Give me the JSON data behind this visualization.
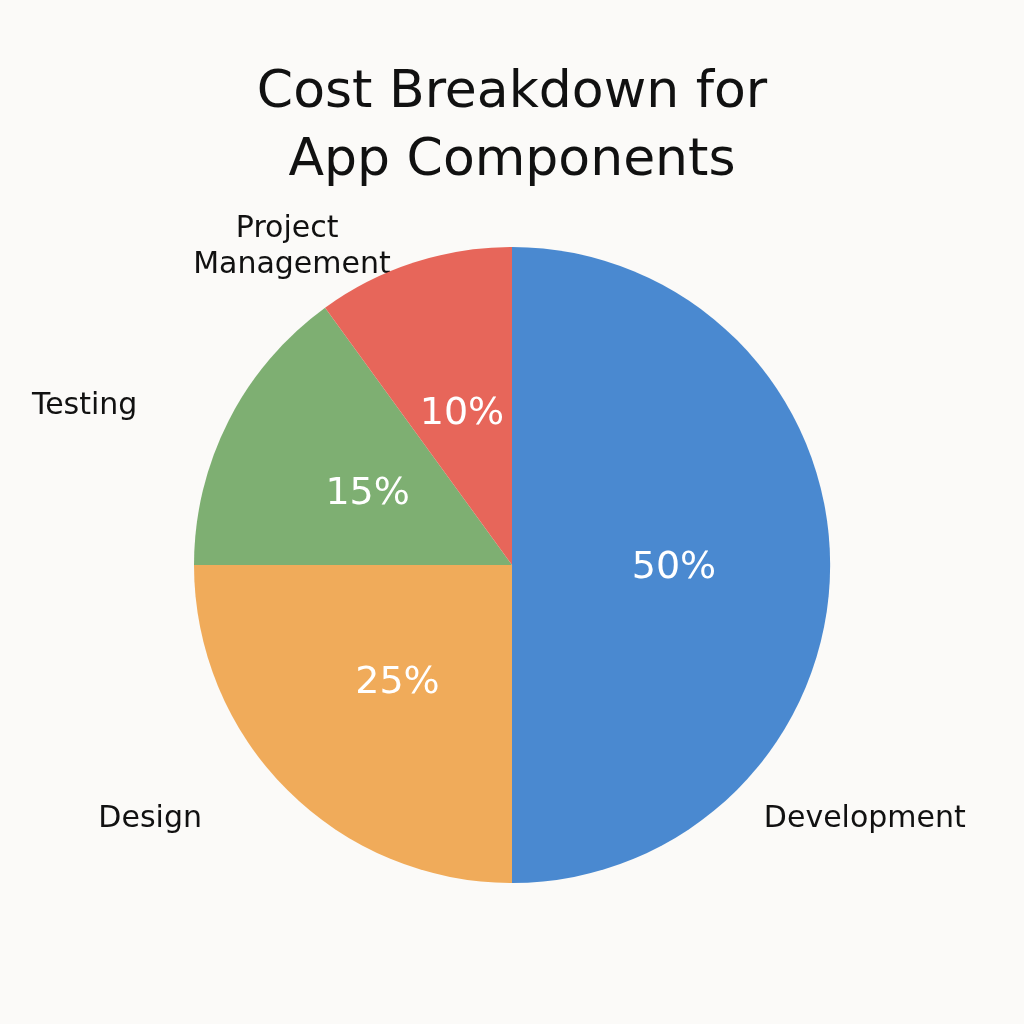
{
  "chart_data": {
    "type": "pie",
    "title": "Cost Breakdown for\nApp Components",
    "categories": [
      "Development",
      "Design",
      "Testing",
      "Project Management"
    ],
    "values": [
      50,
      25,
      15,
      10
    ],
    "colors": [
      "#4a89d0",
      "#f0ab5a",
      "#7eaf72",
      "#e7665a"
    ],
    "value_labels": [
      "50%",
      "25%",
      "15%",
      "10%"
    ],
    "legend": false
  }
}
